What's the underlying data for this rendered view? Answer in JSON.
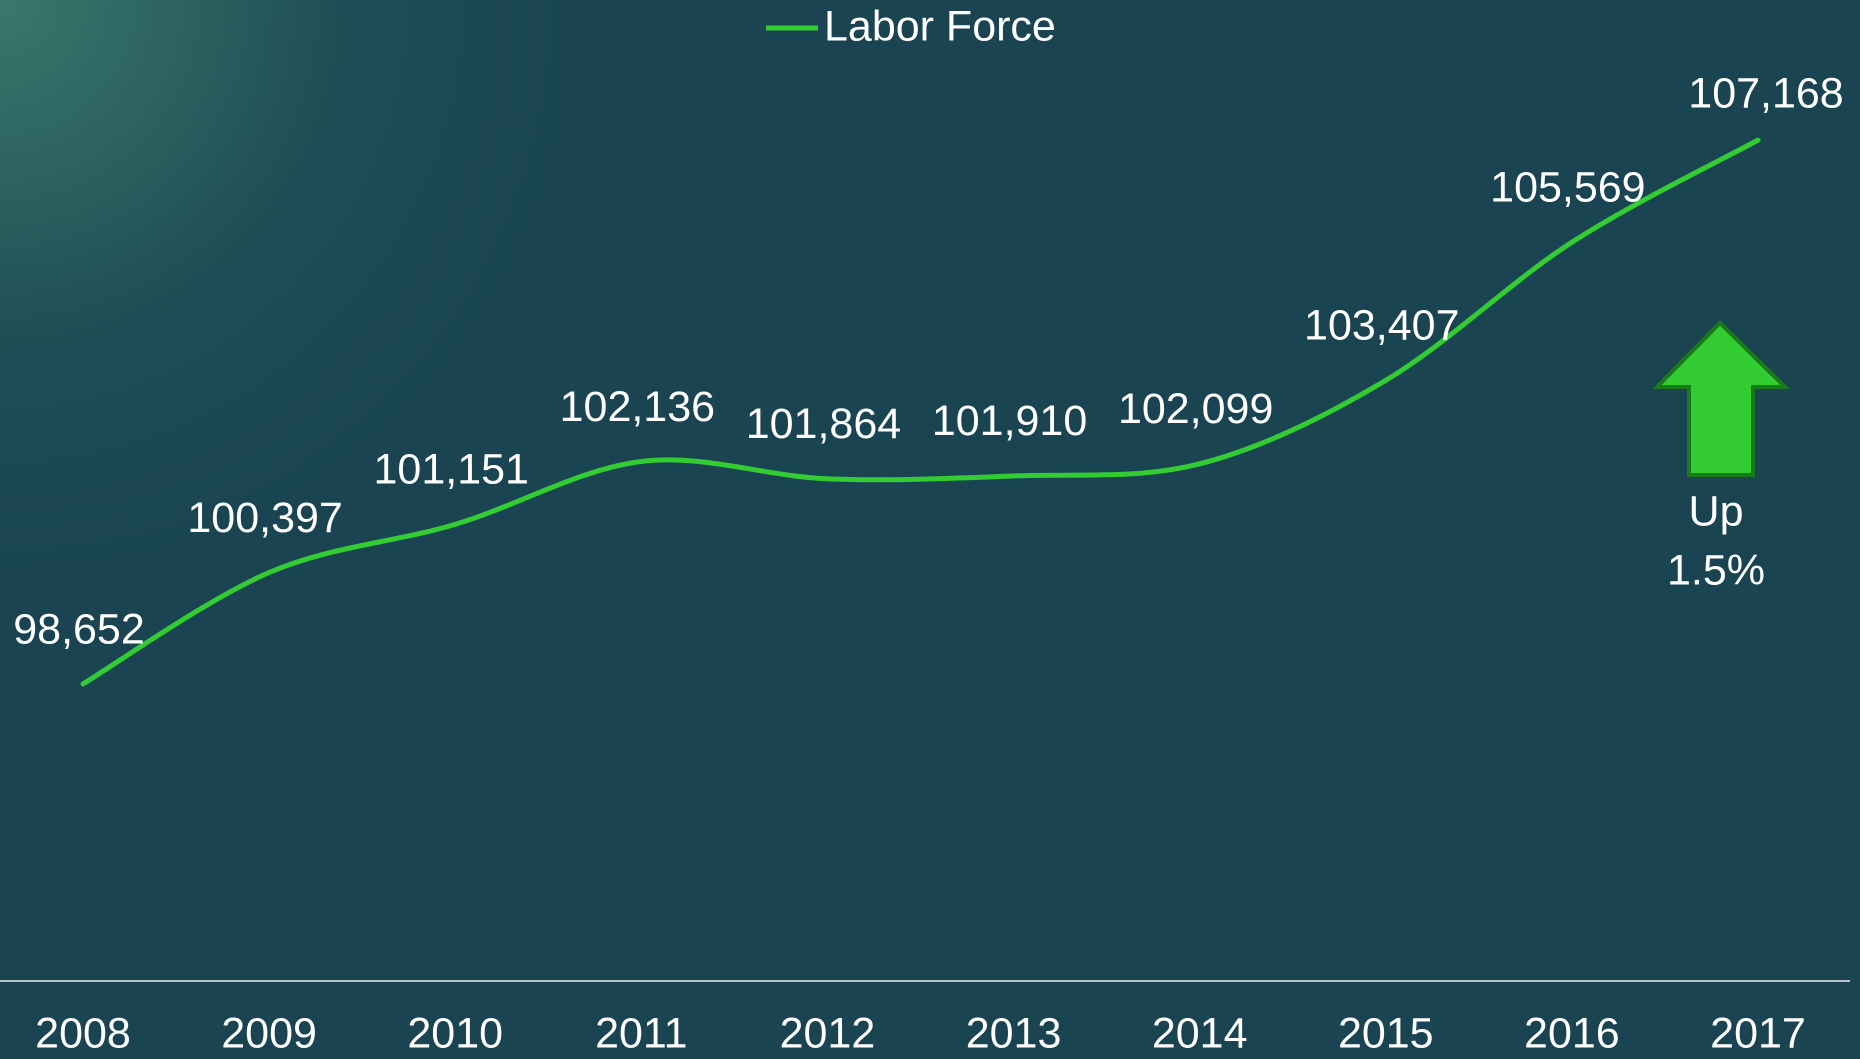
{
  "chart_data": {
    "type": "line",
    "categories": [
      "2008",
      "2009",
      "2010",
      "2011",
      "2012",
      "2013",
      "2014",
      "2015",
      "2016",
      "2017"
    ],
    "series": [
      {
        "name": "Labor Force",
        "color": "#33cc33",
        "values": [
          98652,
          100397,
          101151,
          102136,
          101864,
          101910,
          102099,
          103407,
          105569,
          107168
        ],
        "value_labels": [
          "98,652",
          "100,397",
          "101,151",
          "102,136",
          "101,864",
          "101,910",
          "102,099",
          "103,407",
          "105,569",
          "107,168"
        ]
      }
    ],
    "ylim": [
      94000,
      108000
    ],
    "annotations": [
      "Up",
      "1.5%"
    ],
    "legend": "top"
  }
}
